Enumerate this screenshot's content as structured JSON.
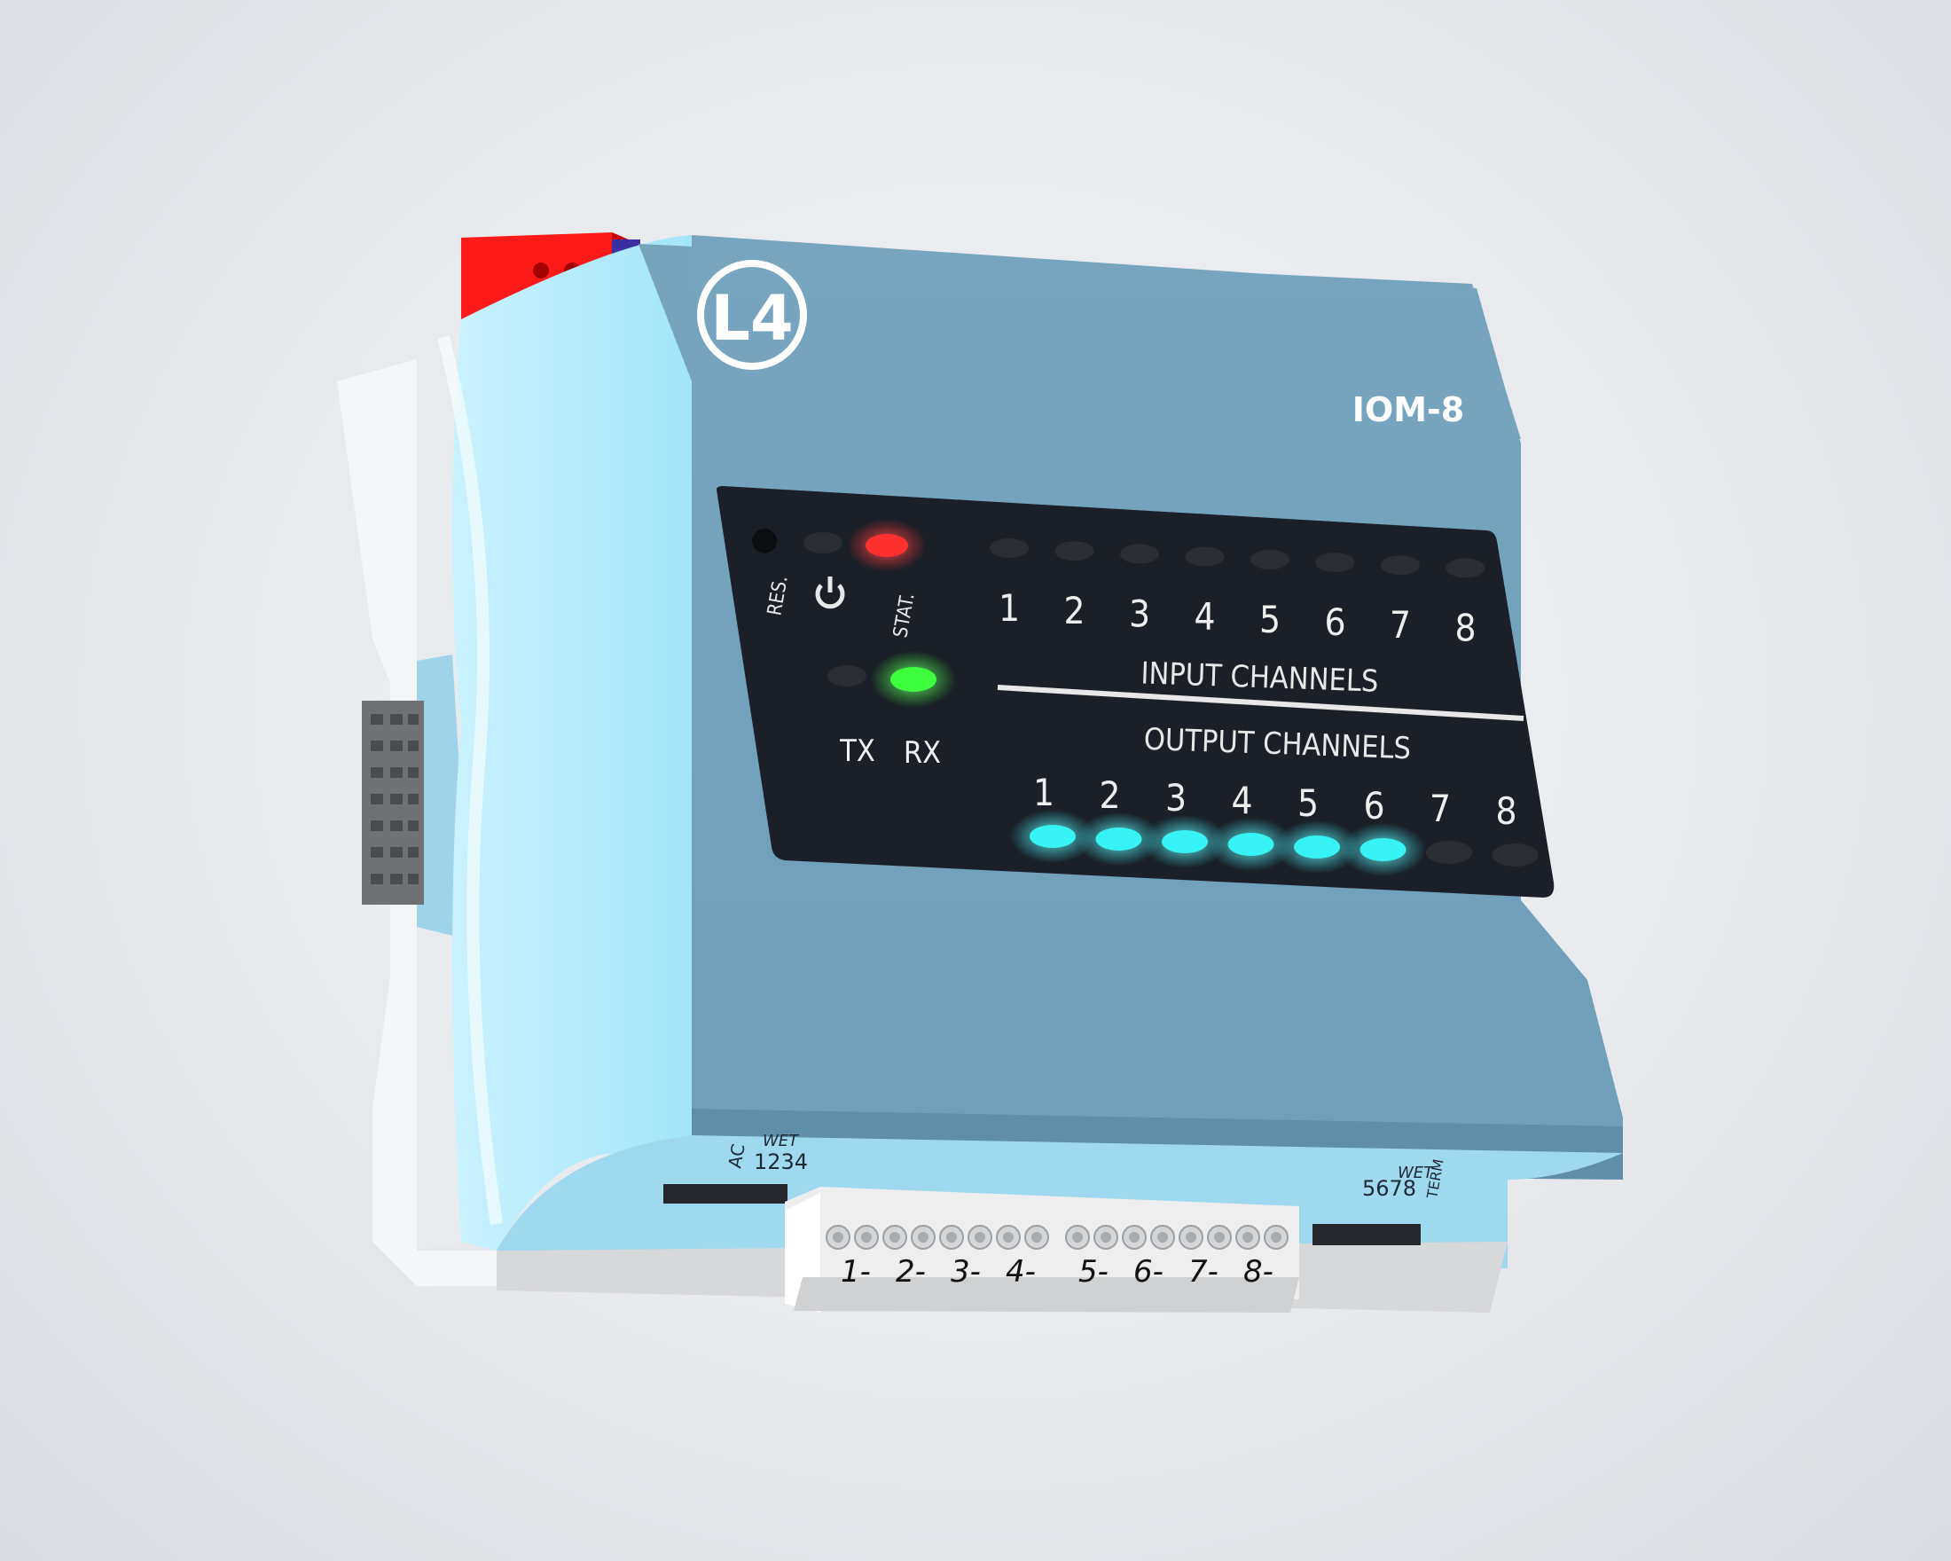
{
  "device": {
    "brand_logo": "L4",
    "model": "IOM-8",
    "colors": {
      "body": "#7aa6c0",
      "body_light": "#a9e7fb",
      "panel": "#1a1f26",
      "connector_red": "#ff1a1a",
      "led_red": "#ff3030",
      "led_green": "#3dff3d",
      "led_cyan": "#37f3f5",
      "led_off": "#2a2e33"
    }
  },
  "status_panel": {
    "reset_label": "RES.",
    "power_icon": "power-icon",
    "status_label": "STAT.",
    "tx_label": "TX",
    "rx_label": "RX",
    "leds": {
      "power": "off",
      "status": "red",
      "tx": "off",
      "rx": "green"
    }
  },
  "input_channels": {
    "title": "INPUT CHANNELS",
    "channels": [
      "1",
      "2",
      "3",
      "4",
      "5",
      "6",
      "7",
      "8"
    ],
    "lit": [
      false,
      false,
      false,
      false,
      false,
      false,
      false,
      false
    ]
  },
  "output_channels": {
    "title": "OUTPUT CHANNELS",
    "channels": [
      "1",
      "2",
      "3",
      "4",
      "5",
      "6",
      "7",
      "8"
    ],
    "lit": [
      true,
      true,
      true,
      true,
      true,
      true,
      false,
      false
    ]
  },
  "bottom_labels": {
    "left_ac": "AC",
    "left_wet": "WET",
    "left_digits": "1234",
    "right_wet": "WET",
    "right_digits": "5678",
    "right_term": "TERM"
  },
  "terminal_block": {
    "left_labels": [
      "1-",
      "2-",
      "3-",
      "4-"
    ],
    "right_labels": [
      "5-",
      "6-",
      "7-",
      "8-"
    ]
  }
}
